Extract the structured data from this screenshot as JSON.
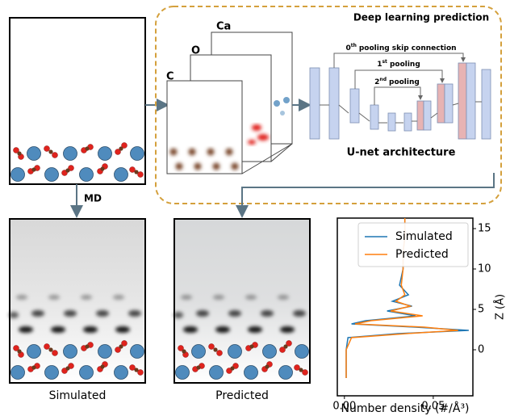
{
  "panel_title": "Deep learning prediction",
  "channels": [
    "Ca",
    "O",
    "C"
  ],
  "unet": {
    "skip_0": {
      "ordinal": "0",
      "suffix": "th",
      "text": "pooling skip connection"
    },
    "pool_1": {
      "ordinal": "1",
      "suffix": "st",
      "text": "pooling"
    },
    "pool_2": {
      "ordinal": "2",
      "suffix": "nd",
      "text": "pooling"
    },
    "label": "U-net architecture"
  },
  "md_label": "MD",
  "images": [
    "Simulated",
    "Predicted"
  ],
  "chart_data": {
    "type": "line",
    "xlabel": "Number density (#/Å³)",
    "ylabel": "Z (Å)",
    "y": [
      -3.5,
      0,
      1.5,
      2,
      2.4,
      2.8,
      3.2,
      3.6,
      4.2,
      4.8,
      5.4,
      6,
      6.8,
      8,
      10,
      12,
      14,
      16.3
    ],
    "series": [
      {
        "name": "Simulated",
        "color": "#1f77b4",
        "values": [
          0.001,
          0.001,
          0.002,
          0.03,
          0.07,
          0.04,
          0.004,
          0.012,
          0.04,
          0.024,
          0.038,
          0.027,
          0.036,
          0.031,
          0.033,
          0.033,
          0.034,
          0.034
        ]
      },
      {
        "name": "Predicted",
        "color": "#ff7f0e",
        "values": [
          0.001,
          0.001,
          0.004,
          0.035,
          0.064,
          0.045,
          0.006,
          0.015,
          0.044,
          0.026,
          0.037,
          0.029,
          0.034,
          0.032,
          0.033,
          0.033,
          0.034,
          0.034
        ]
      }
    ],
    "xlim": [
      -0.004,
      0.0723
    ],
    "ylim": [
      -5.7,
      16.3
    ],
    "xticks": [
      {
        "value": 0,
        "label": "0.00"
      },
      {
        "value": 0.05,
        "label": "0.05"
      }
    ],
    "yticks": [
      0,
      5,
      10,
      15
    ],
    "legend": "upper right"
  }
}
